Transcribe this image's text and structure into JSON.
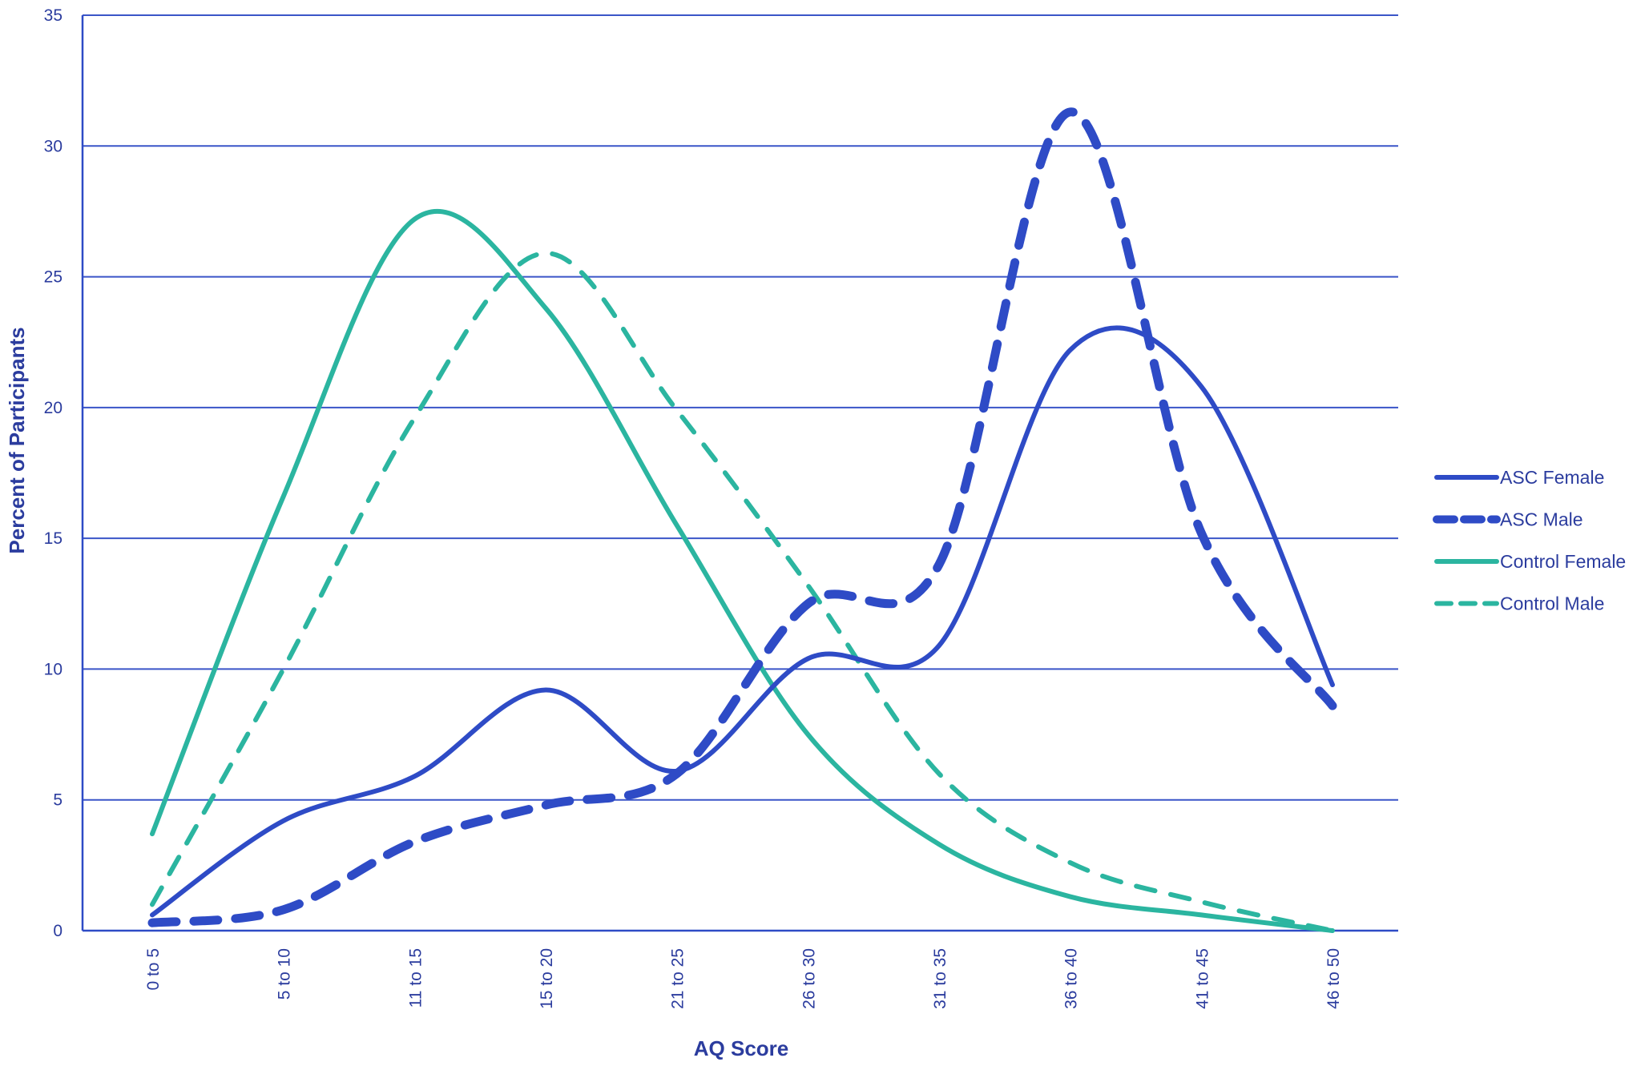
{
  "chart_data": {
    "type": "line",
    "title": "",
    "xlabel": "AQ Score",
    "ylabel": "Percent of Participants",
    "categories": [
      "0 to 5",
      "5 to 10",
      "11 to 15",
      "15 to 20",
      "21 to 25",
      "26 to 30",
      "31 to 35",
      "36 to 40",
      "41 to 45",
      "46 to 50"
    ],
    "ylim": [
      0,
      35
    ],
    "yticks": [
      0,
      5,
      10,
      15,
      20,
      25,
      30,
      35
    ],
    "grid": "horizontal",
    "legend_position": "right",
    "smooth": true,
    "series": [
      {
        "name": "ASC Female",
        "color": "#2e4bc6",
        "style": "solid",
        "values": [
          0.6,
          4.2,
          5.9,
          9.2,
          6.1,
          10.4,
          10.9,
          22.2,
          20.8,
          9.4
        ]
      },
      {
        "name": "ASC Male",
        "color": "#2e4bc6",
        "style": "dashed",
        "values": [
          0.3,
          0.8,
          3.4,
          4.8,
          6.0,
          12.5,
          14.0,
          31.3,
          15.2,
          8.6
        ]
      },
      {
        "name": "Control Female",
        "color": "#2bb5a0",
        "style": "solid",
        "values": [
          3.7,
          16.6,
          27.2,
          23.8,
          15.5,
          7.5,
          3.3,
          1.3,
          0.6,
          0.0
        ]
      },
      {
        "name": "Control Male",
        "color": "#2bb5a0",
        "style": "dashed",
        "values": [
          1.0,
          10.0,
          19.6,
          25.9,
          19.9,
          13.2,
          6.0,
          2.6,
          1.1,
          0.0
        ]
      }
    ]
  }
}
